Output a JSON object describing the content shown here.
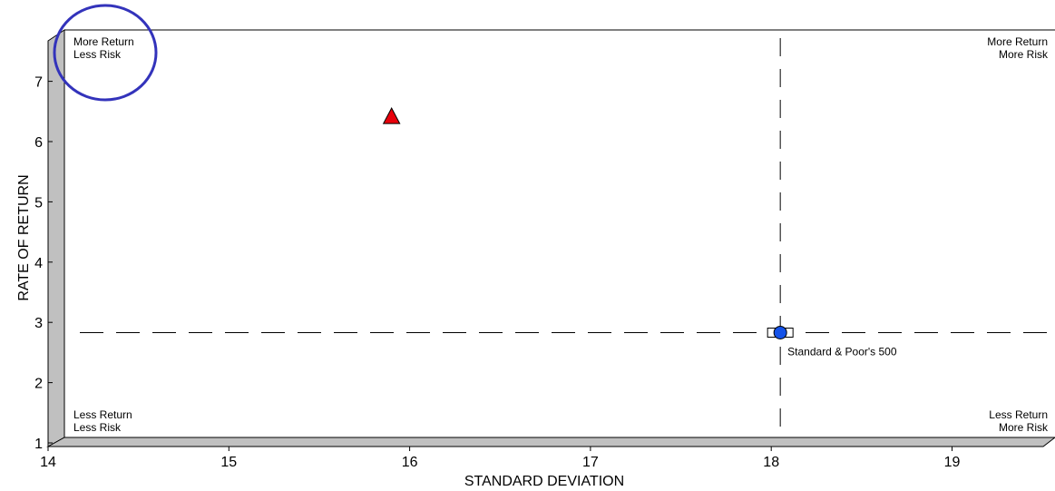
{
  "chart_data": {
    "type": "scatter",
    "xlabel": "STANDARD DEVIATION",
    "ylabel": "RATE OF RETURN",
    "xlim": [
      14,
      19.5
    ],
    "ylim": [
      1,
      7.8
    ],
    "xticks": [
      "14",
      "15",
      "16",
      "17",
      "18",
      "19"
    ],
    "yticks": [
      "1",
      "2",
      "3",
      "4",
      "5",
      "6",
      "7"
    ],
    "grid": false,
    "quadrant_labels": {
      "top_left": [
        "More Return",
        "Less Risk"
      ],
      "top_right": [
        "More Return",
        "More Risk"
      ],
      "bottom_left": [
        "Less Return",
        "Less Risk"
      ],
      "bottom_right": [
        "Less Return",
        "More Risk"
      ]
    },
    "reference_lines": {
      "x": 18.05,
      "y": 2.83
    },
    "points": [
      {
        "x": 15.9,
        "y": 6.42,
        "marker": "triangle",
        "color": "#e8000b",
        "label": ""
      },
      {
        "x": 18.05,
        "y": 2.83,
        "marker": "circle",
        "color": "#1452e8",
        "label": "Standard & Poor's 500"
      }
    ],
    "highlight_circle": {
      "color": "#3333bb",
      "around": "top_left"
    },
    "colors": {
      "wall": "#c0c0c0",
      "axis": "#000000"
    }
  }
}
